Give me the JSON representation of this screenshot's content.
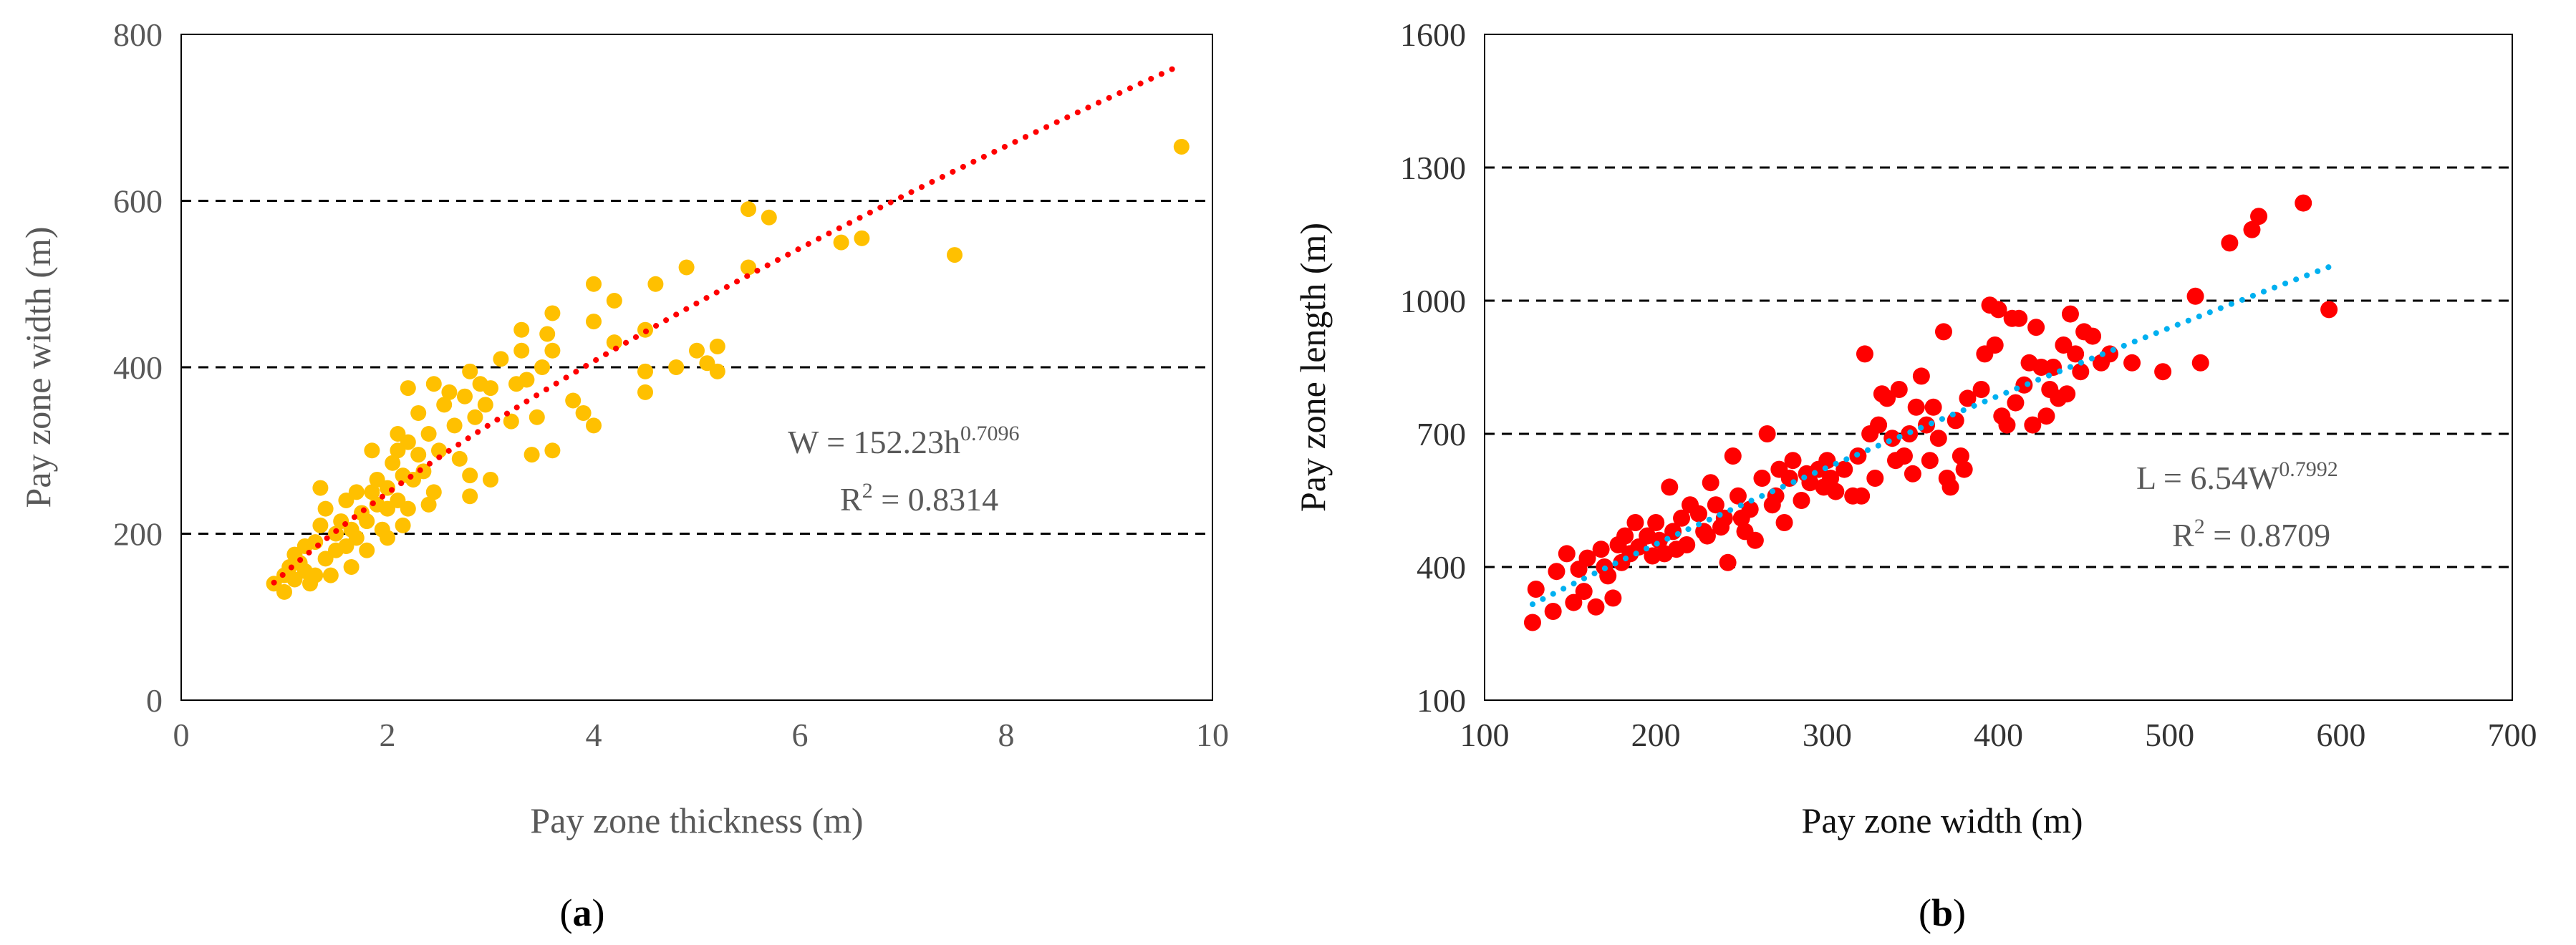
{
  "chart_data": [
    {
      "type": "scatter",
      "caption_open": "(",
      "caption_letter": "a",
      "caption_close": ")",
      "xlabel": "Pay zone thickness (m)",
      "ylabel": "Pay zone width (m)",
      "xlim": [
        0,
        10
      ],
      "ylim": [
        0,
        800
      ],
      "xticks": [
        0,
        2,
        4,
        6,
        8,
        10
      ],
      "yticks": [
        0,
        200,
        400,
        600,
        800
      ],
      "gridlines_y": [
        200,
        400,
        600
      ],
      "colors": {
        "points": "#FFC000",
        "trend": "#FF0000",
        "grid": "#000000"
      },
      "equation": {
        "lhs": "W = 152.23h",
        "exp": "0.7096",
        "r2_label": "R",
        "r2_sup": "2",
        "r2_value": " = 0.8314"
      },
      "trend": {
        "a": 152.23,
        "b": 0.7096,
        "x_range": [
          0.9,
          9.7
        ]
      },
      "series": [
        {
          "name": "data",
          "points": [
            [
              0.9,
              140
            ],
            [
              1.0,
              130
            ],
            [
              1.0,
              150
            ],
            [
              1.05,
              160
            ],
            [
              1.1,
              145
            ],
            [
              1.1,
              175
            ],
            [
              1.15,
              165
            ],
            [
              1.2,
              155
            ],
            [
              1.2,
              185
            ],
            [
              1.25,
              140
            ],
            [
              1.3,
              190
            ],
            [
              1.3,
              150
            ],
            [
              1.35,
              210
            ],
            [
              1.35,
              255
            ],
            [
              1.4,
              170
            ],
            [
              1.4,
              230
            ],
            [
              1.45,
              150
            ],
            [
              1.5,
              180
            ],
            [
              1.5,
              200
            ],
            [
              1.55,
              215
            ],
            [
              1.6,
              185
            ],
            [
              1.6,
              240
            ],
            [
              1.65,
              160
            ],
            [
              1.65,
              205
            ],
            [
              1.7,
              195
            ],
            [
              1.7,
              250
            ],
            [
              1.75,
              225
            ],
            [
              1.8,
              180
            ],
            [
              1.8,
              215
            ],
            [
              1.85,
              250
            ],
            [
              1.85,
              300
            ],
            [
              1.9,
              235
            ],
            [
              1.9,
              265
            ],
            [
              1.95,
              205
            ],
            [
              2.0,
              195
            ],
            [
              2.0,
              230
            ],
            [
              2.0,
              255
            ],
            [
              2.05,
              285
            ],
            [
              2.1,
              240
            ],
            [
              2.1,
              300
            ],
            [
              2.1,
              320
            ],
            [
              2.15,
              210
            ],
            [
              2.15,
              270
            ],
            [
              2.2,
              230
            ],
            [
              2.2,
              310
            ],
            [
              2.2,
              375
            ],
            [
              2.25,
              265
            ],
            [
              2.3,
              295
            ],
            [
              2.3,
              345
            ],
            [
              2.35,
              275
            ],
            [
              2.4,
              235
            ],
            [
              2.4,
              320
            ],
            [
              2.45,
              250
            ],
            [
              2.45,
              380
            ],
            [
              2.5,
              300
            ],
            [
              2.55,
              355
            ],
            [
              2.6,
              370
            ],
            [
              2.65,
              330
            ],
            [
              2.7,
              290
            ],
            [
              2.75,
              365
            ],
            [
              2.8,
              245
            ],
            [
              2.8,
              270
            ],
            [
              2.8,
              395
            ],
            [
              2.85,
              340
            ],
            [
              2.9,
              380
            ],
            [
              2.95,
              355
            ],
            [
              3.0,
              265
            ],
            [
              3.0,
              375
            ],
            [
              3.1,
              410
            ],
            [
              3.2,
              335
            ],
            [
              3.25,
              380
            ],
            [
              3.3,
              420
            ],
            [
              3.3,
              445
            ],
            [
              3.35,
              385
            ],
            [
              3.4,
              295
            ],
            [
              3.45,
              340
            ],
            [
              3.5,
              400
            ],
            [
              3.55,
              440
            ],
            [
              3.6,
              300
            ],
            [
              3.6,
              420
            ],
            [
              3.6,
              465
            ],
            [
              3.8,
              360
            ],
            [
              3.9,
              345
            ],
            [
              4.0,
              330
            ],
            [
              4.0,
              455
            ],
            [
              4.0,
              500
            ],
            [
              4.2,
              430
            ],
            [
              4.2,
              480
            ],
            [
              4.5,
              370
            ],
            [
              4.5,
              395
            ],
            [
              4.5,
              445
            ],
            [
              4.6,
              500
            ],
            [
              4.8,
              400
            ],
            [
              4.9,
              520
            ],
            [
              5.0,
              420
            ],
            [
              5.1,
              405
            ],
            [
              5.2,
              395
            ],
            [
              5.2,
              425
            ],
            [
              5.5,
              520
            ],
            [
              5.5,
              590
            ],
            [
              5.7,
              580
            ],
            [
              6.4,
              550
            ],
            [
              6.6,
              555
            ],
            [
              7.5,
              535
            ],
            [
              9.7,
              665
            ]
          ]
        }
      ]
    },
    {
      "type": "scatter",
      "caption_open": "(",
      "caption_letter": "b",
      "caption_close": ")",
      "xlabel": "Pay zone width (m)",
      "ylabel": "Pay zone length (m)",
      "xlim": [
        100,
        700
      ],
      "ylim": [
        100,
        1600
      ],
      "xticks": [
        100,
        200,
        300,
        400,
        500,
        600,
        700
      ],
      "yticks": [
        100,
        400,
        700,
        1000,
        1300,
        1600
      ],
      "gridlines_y": [
        400,
        700,
        1000,
        1300
      ],
      "colors": {
        "points": "#FF0000",
        "trend": "#00B0F0",
        "grid": "#000000"
      },
      "equation": {
        "lhs": "L = 6.54W",
        "exp": "0.7992",
        "r2_label": "R",
        "r2_sup": "2",
        "r2_value": " = 0.8709"
      },
      "trend": {
        "a": 6.54,
        "b": 0.7992,
        "x_range": [
          128,
          593
        ]
      },
      "series": [
        {
          "name": "data",
          "points": [
            [
              128,
              275
            ],
            [
              130,
              350
            ],
            [
              140,
              300
            ],
            [
              142,
              390
            ],
            [
              148,
              430
            ],
            [
              152,
              320
            ],
            [
              155,
              395
            ],
            [
              158,
              345
            ],
            [
              160,
              420
            ],
            [
              165,
              310
            ],
            [
              168,
              440
            ],
            [
              170,
              400
            ],
            [
              172,
              380
            ],
            [
              175,
              330
            ],
            [
              178,
              450
            ],
            [
              180,
              410
            ],
            [
              182,
              470
            ],
            [
              185,
              430
            ],
            [
              188,
              500
            ],
            [
              190,
              445
            ],
            [
              195,
              470
            ],
            [
              198,
              425
            ],
            [
              200,
              500
            ],
            [
              202,
              460
            ],
            [
              205,
              430
            ],
            [
              208,
              580
            ],
            [
              210,
              480
            ],
            [
              212,
              440
            ],
            [
              215,
              510
            ],
            [
              218,
              450
            ],
            [
              220,
              540
            ],
            [
              225,
              520
            ],
            [
              228,
              480
            ],
            [
              230,
              470
            ],
            [
              232,
              590
            ],
            [
              235,
              540
            ],
            [
              238,
              490
            ],
            [
              240,
              510
            ],
            [
              242,
              410
            ],
            [
              245,
              650
            ],
            [
              248,
              560
            ],
            [
              250,
              510
            ],
            [
              252,
              480
            ],
            [
              255,
              530
            ],
            [
              258,
              460
            ],
            [
              262,
              600
            ],
            [
              265,
              700
            ],
            [
              268,
              540
            ],
            [
              270,
              560
            ],
            [
              272,
              620
            ],
            [
              275,
              500
            ],
            [
              278,
              600
            ],
            [
              280,
              640
            ],
            [
              285,
              550
            ],
            [
              288,
              610
            ],
            [
              290,
              590
            ],
            [
              295,
              620
            ],
            [
              298,
              580
            ],
            [
              300,
              640
            ],
            [
              302,
              600
            ],
            [
              305,
              570
            ],
            [
              310,
              620
            ],
            [
              315,
              560
            ],
            [
              318,
              650
            ],
            [
              320,
              560
            ],
            [
              322,
              880
            ],
            [
              325,
              700
            ],
            [
              328,
              600
            ],
            [
              330,
              720
            ],
            [
              332,
              790
            ],
            [
              335,
              780
            ],
            [
              338,
              690
            ],
            [
              340,
              640
            ],
            [
              342,
              800
            ],
            [
              345,
              650
            ],
            [
              348,
              700
            ],
            [
              350,
              610
            ],
            [
              352,
              760
            ],
            [
              355,
              830
            ],
            [
              358,
              720
            ],
            [
              360,
              640
            ],
            [
              362,
              760
            ],
            [
              365,
              690
            ],
            [
              368,
              930
            ],
            [
              370,
              600
            ],
            [
              372,
              580
            ],
            [
              375,
              730
            ],
            [
              378,
              650
            ],
            [
              380,
              620
            ],
            [
              382,
              780
            ],
            [
              390,
              800
            ],
            [
              392,
              880
            ],
            [
              395,
              990
            ],
            [
              398,
              900
            ],
            [
              400,
              980
            ],
            [
              402,
              740
            ],
            [
              405,
              720
            ],
            [
              408,
              960
            ],
            [
              410,
              770
            ],
            [
              412,
              960
            ],
            [
              415,
              810
            ],
            [
              418,
              860
            ],
            [
              420,
              720
            ],
            [
              422,
              940
            ],
            [
              425,
              850
            ],
            [
              428,
              740
            ],
            [
              430,
              800
            ],
            [
              432,
              850
            ],
            [
              435,
              780
            ],
            [
              438,
              900
            ],
            [
              440,
              790
            ],
            [
              442,
              970
            ],
            [
              445,
              880
            ],
            [
              448,
              840
            ],
            [
              450,
              930
            ],
            [
              455,
              920
            ],
            [
              460,
              860
            ],
            [
              465,
              880
            ],
            [
              478,
              860
            ],
            [
              496,
              840
            ],
            [
              515,
              1010
            ],
            [
              518,
              860
            ],
            [
              535,
              1130
            ],
            [
              548,
              1160
            ],
            [
              552,
              1190
            ],
            [
              578,
              1220
            ],
            [
              593,
              980
            ]
          ]
        }
      ]
    }
  ]
}
